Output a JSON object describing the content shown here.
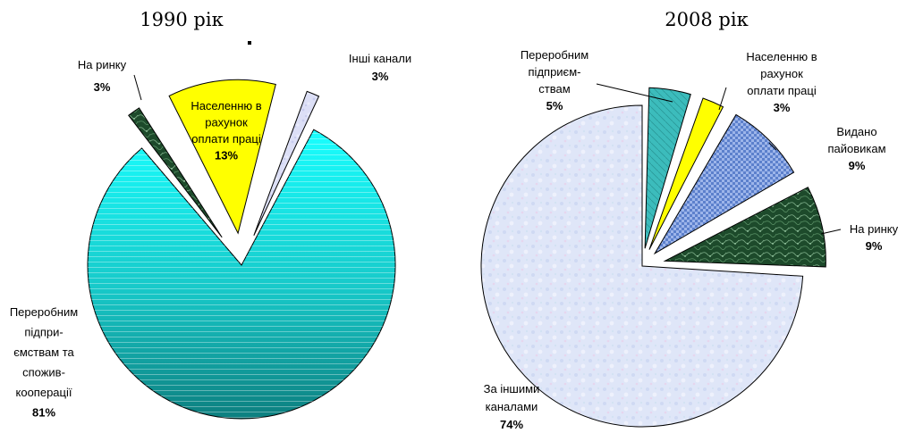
{
  "chart_data": [
    {
      "type": "pie",
      "title": "1990 рік",
      "slices": [
        {
          "label_lines": [
            "Переробним",
            "підпри-",
            "ємствам та",
            "спожив-",
            "кооперації"
          ],
          "value": 81,
          "value_label": "81%",
          "fill": "teal-gradient"
        },
        {
          "label_lines": [
            "На ринку"
          ],
          "value": 3,
          "value_label": "3%",
          "fill": "dark-green-marble"
        },
        {
          "label_lines": [
            "Населенню в",
            "рахунок",
            "оплати праці"
          ],
          "value": 13,
          "value_label": "13%",
          "fill": "#ffff00"
        },
        {
          "label_lines": [
            "Інші канали"
          ],
          "value": 3,
          "value_label": "3%",
          "fill": "light-lavender"
        }
      ],
      "colors": {
        "slice_1": "#1fd5d5",
        "slice_2": "#1f4d2e",
        "slice_3": "#ffff00",
        "slice_4": "#d9dcf5"
      }
    },
    {
      "type": "pie",
      "title": "2008 рік",
      "slices": [
        {
          "label_lines": [
            "Переробним",
            "підприєм-",
            "ствам"
          ],
          "value": 5,
          "value_label": "5%",
          "fill": "teal"
        },
        {
          "label_lines": [
            "Населенню в",
            "рахунок",
            "оплати праці"
          ],
          "value": 3,
          "value_label": "3%",
          "fill": "#ffff00"
        },
        {
          "label_lines": [
            "Видано",
            "пайовикам"
          ],
          "value": 9,
          "value_label": "9%",
          "fill": "blue-pattern"
        },
        {
          "label_lines": [
            "На ринку"
          ],
          "value": 9,
          "value_label": "9%",
          "fill": "dark-green-marble"
        },
        {
          "label_lines": [
            "За іншими",
            "каналами"
          ],
          "value": 74,
          "value_label": "74%",
          "fill": "light-blue-texture"
        }
      ],
      "colors": {
        "slice_1": "#3fbfbf",
        "slice_2": "#ffff00",
        "slice_3": "#6f8fd5",
        "slice_4": "#1f5a33",
        "slice_5": "#dde4f7"
      }
    }
  ]
}
